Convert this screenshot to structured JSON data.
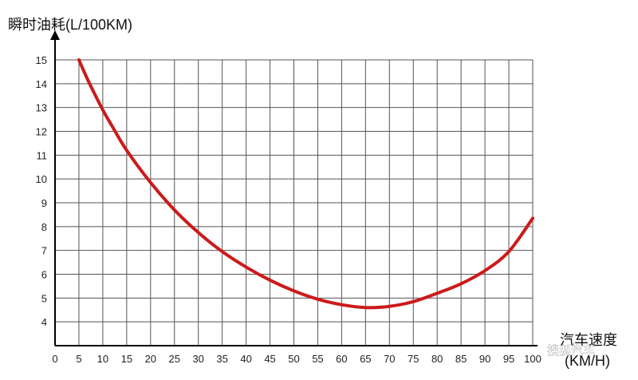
{
  "chart_data": {
    "type": "line",
    "title": "",
    "ylabel": "瞬时油耗(L/100KM)",
    "xlabel_line1": "汽车速度",
    "xlabel_line2": "(KM/H)",
    "xlim": [
      0,
      100
    ],
    "ylim": [
      3,
      15
    ],
    "x_ticks": [
      0,
      5,
      10,
      15,
      20,
      25,
      30,
      35,
      40,
      45,
      50,
      55,
      60,
      65,
      70,
      75,
      80,
      85,
      90,
      95,
      100
    ],
    "y_ticks": [
      4,
      5,
      6,
      7,
      8,
      9,
      10,
      11,
      12,
      13,
      14,
      15
    ],
    "grid": true,
    "series": [
      {
        "color": "#cc1a1a",
        "x": [
          5,
          7,
          10,
          12,
          15,
          20,
          25,
          30,
          35,
          40,
          45,
          50,
          55,
          60,
          65,
          70,
          75,
          80,
          85,
          90,
          95,
          100
        ],
        "y": [
          15.0,
          14.1,
          12.9,
          12.2,
          11.2,
          9.85,
          8.7,
          7.75,
          6.95,
          6.3,
          5.75,
          5.3,
          4.95,
          4.72,
          4.6,
          4.65,
          4.85,
          5.2,
          5.6,
          6.15,
          6.95,
          8.35
        ]
      }
    ]
  },
  "watermark": "搜狐汽车"
}
